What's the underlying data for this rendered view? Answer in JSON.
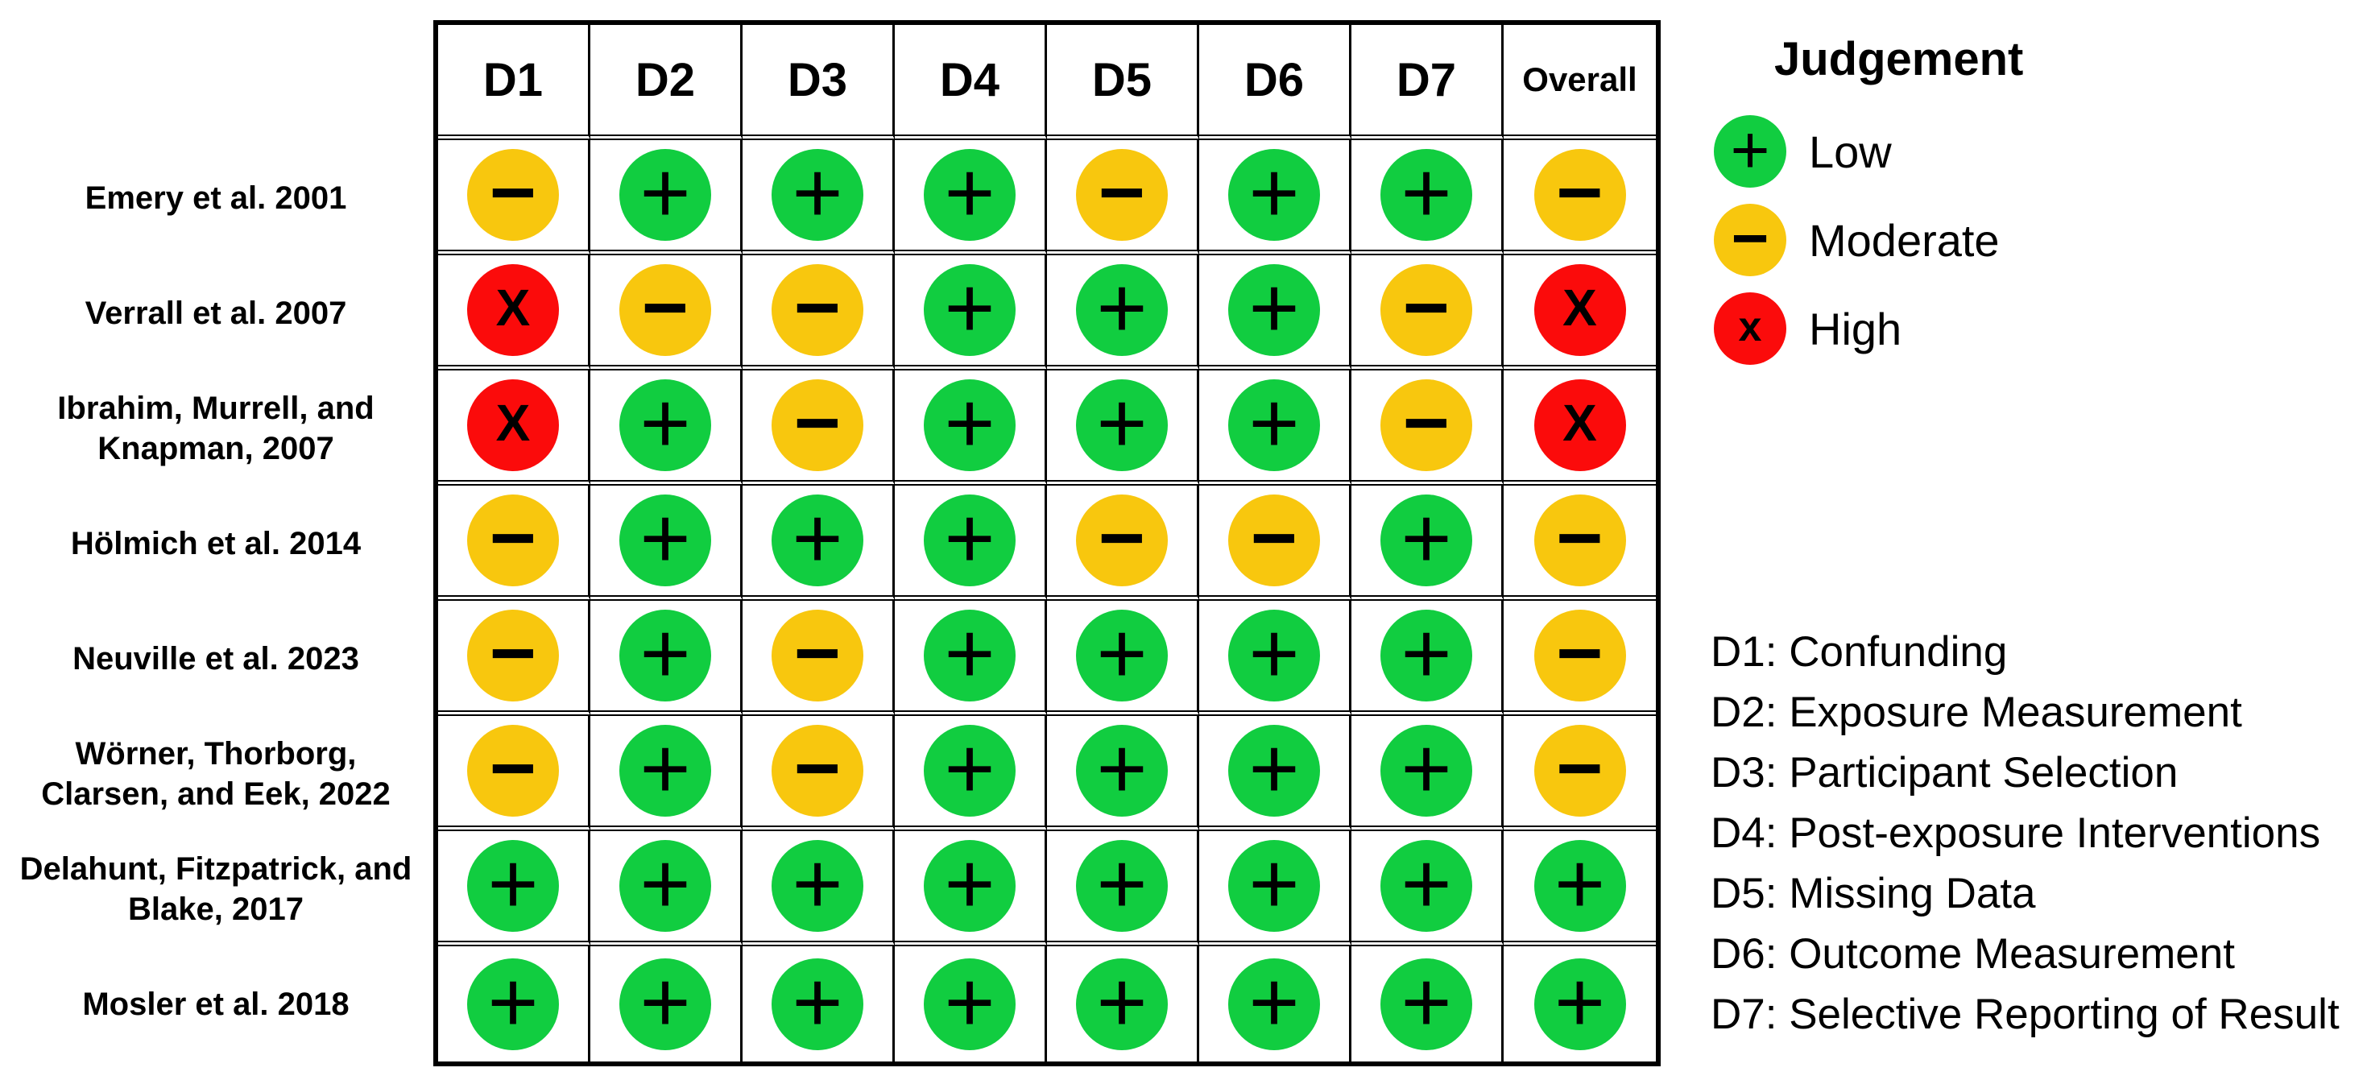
{
  "figure_type": "risk-of-bias traffic light plot",
  "chart_data": {
    "type": "heatmap",
    "columns": [
      "D1",
      "D2",
      "D3",
      "D4",
      "D5",
      "D6",
      "D7",
      "Overall"
    ],
    "studies": [
      "Emery et al. 2001",
      "Verrall et al. 2007",
      "Ibrahim, Murrell, and\nKnapman, 2007",
      "Hölmich et al. 2014",
      "Neuville et al. 2023",
      "Wörner, Thorborg,\nClarsen, and Eek, 2022",
      "Delahunt, Fitzpatrick, and\nBlake, 2017",
      "Mosler et al. 2018"
    ],
    "judgements": [
      [
        "moderate",
        "low",
        "low",
        "low",
        "moderate",
        "low",
        "low",
        "moderate"
      ],
      [
        "high",
        "moderate",
        "moderate",
        "low",
        "low",
        "low",
        "moderate",
        "high"
      ],
      [
        "high",
        "low",
        "moderate",
        "low",
        "low",
        "low",
        "moderate",
        "high"
      ],
      [
        "moderate",
        "low",
        "low",
        "low",
        "moderate",
        "moderate",
        "low",
        "moderate"
      ],
      [
        "moderate",
        "low",
        "moderate",
        "low",
        "low",
        "low",
        "low",
        "moderate"
      ],
      [
        "moderate",
        "low",
        "moderate",
        "low",
        "low",
        "low",
        "low",
        "moderate"
      ],
      [
        "low",
        "low",
        "low",
        "low",
        "low",
        "low",
        "low",
        "low"
      ],
      [
        "low",
        "low",
        "low",
        "low",
        "low",
        "low",
        "low",
        "low"
      ]
    ],
    "legend_position": "top-right",
    "grid": "on"
  },
  "judgement_styles": {
    "low": {
      "symbol": "+",
      "color": "#11cd40",
      "label": "Low"
    },
    "moderate": {
      "symbol": "−",
      "color": "#f8c70e",
      "label": "Moderate"
    },
    "high": {
      "symbol": "X",
      "color": "#fb0b0b",
      "label": "High"
    }
  },
  "legend": {
    "title": "Judgement",
    "items": [
      {
        "level": "low",
        "symbol": "+",
        "label": "Low",
        "color": "#11cd40"
      },
      {
        "level": "moderate",
        "symbol": "−",
        "label": "Moderate",
        "color": "#f8c70e"
      },
      {
        "level": "high",
        "symbol": "x",
        "label": "High",
        "color": "#fb0b0b"
      }
    ]
  },
  "domain_key": [
    "D1: Confunding",
    "D2: Exposure Measurement",
    "D3: Participant Selection",
    "D4: Post-exposure Interventions",
    "D5: Missing Data",
    "D6: Outcome Measurement",
    "D7: Selective Reporting of Result"
  ]
}
